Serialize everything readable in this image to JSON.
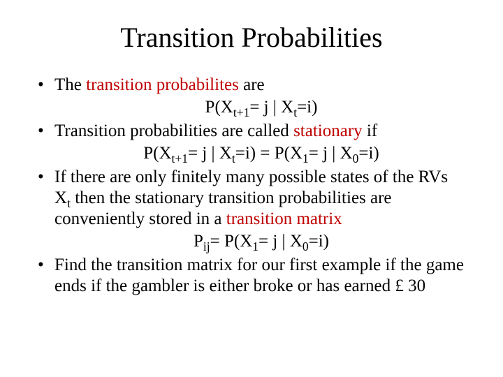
{
  "title": "Transition Probabilities",
  "bullets": {
    "b1_prefix": "The ",
    "b1_em": "transition probabilites",
    "b1_suffix": " are",
    "b1_formula_a": "P(X",
    "b1_formula_sub1": "t+1",
    "b1_formula_b": "= j | X",
    "b1_formula_sub2": "t",
    "b1_formula_c": "=i)",
    "b2_prefix": "Transition probabilities are called ",
    "b2_em": "stationary",
    "b2_suffix": " if",
    "b2_formula_a": "P(X",
    "b2_formula_sub1": "t+1",
    "b2_formula_b": "= j | X",
    "b2_formula_sub2": "t",
    "b2_formula_c": "=i) = P(X",
    "b2_formula_sub3": "1",
    "b2_formula_d": "= j | X",
    "b2_formula_sub4": "0",
    "b2_formula_e": "=i)",
    "b3_a": "If there are only finitely many possible states of the RVs X",
    "b3_sub1": "t",
    "b3_b": " then the stationary transition probabilities are conveniently stored in a ",
    "b3_em": "transition matrix",
    "b3_formula_a": "P",
    "b3_formula_sub1": "ij",
    "b3_formula_b": "= P(X",
    "b3_formula_sub2": "1",
    "b3_formula_c": "= j | X",
    "b3_formula_sub3": "0",
    "b3_formula_d": "=i)",
    "b4": "Find the transition matrix for our first example if the game ends if the gambler is either broke or has earned £ 30"
  },
  "colors": {
    "text": "#000000",
    "emphasis": "#c00000",
    "background": "#ffffff"
  },
  "typography": {
    "title_fontsize": 40,
    "body_fontsize": 25,
    "font_family": "Times New Roman"
  }
}
